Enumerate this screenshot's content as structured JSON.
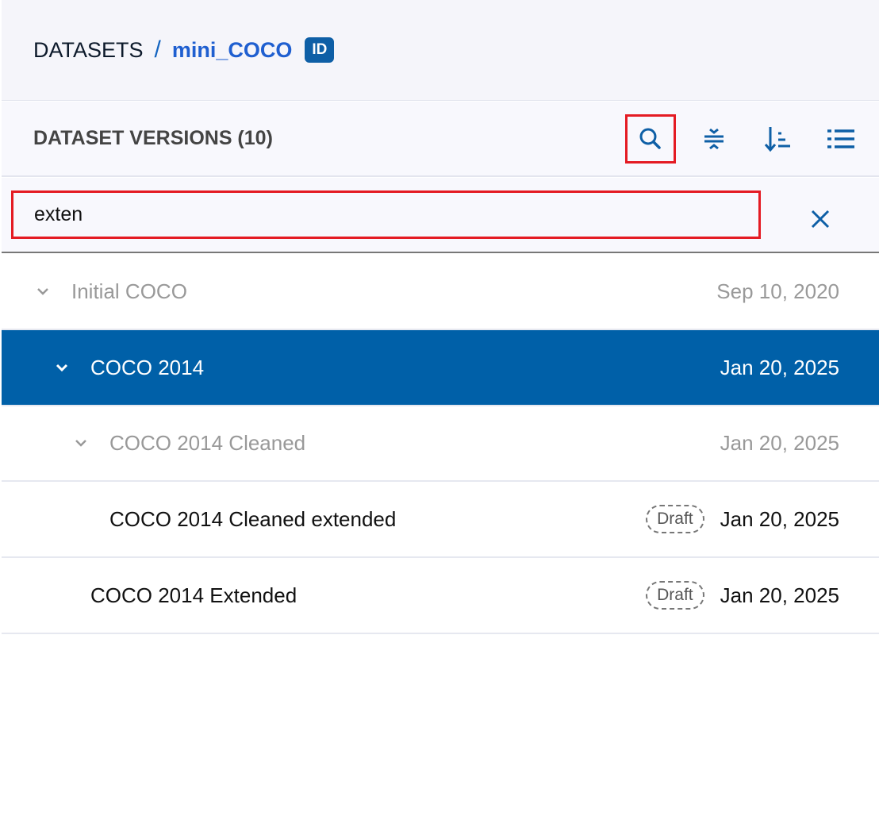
{
  "breadcrumb": {
    "root": "DATASETS",
    "separator": "/",
    "current": "mini_COCO",
    "badge": "ID"
  },
  "toolbar": {
    "title": "DATASET VERSIONS (10)",
    "icons": [
      "search-icon",
      "collapse-icon",
      "sort-icon",
      "list-icon"
    ]
  },
  "search": {
    "value": "exten",
    "placeholder": ""
  },
  "colors": {
    "accent": "#0060a8",
    "highlight": "#e41b23"
  },
  "versions": [
    {
      "name": "Initial COCO",
      "date": "Sep 10, 2020",
      "badge": "",
      "state": "muted"
    },
    {
      "name": "COCO 2014",
      "date": "Jan 20, 2025",
      "badge": "",
      "state": "selected"
    },
    {
      "name": "COCO 2014 Cleaned",
      "date": "Jan 20, 2025",
      "badge": "",
      "state": "muted"
    },
    {
      "name": "COCO 2014 Cleaned extended",
      "date": "Jan 20, 2025",
      "badge": "Draft",
      "state": "match"
    },
    {
      "name": "COCO 2014 Extended",
      "date": "Jan 20, 2025",
      "badge": "Draft",
      "state": "match"
    }
  ]
}
